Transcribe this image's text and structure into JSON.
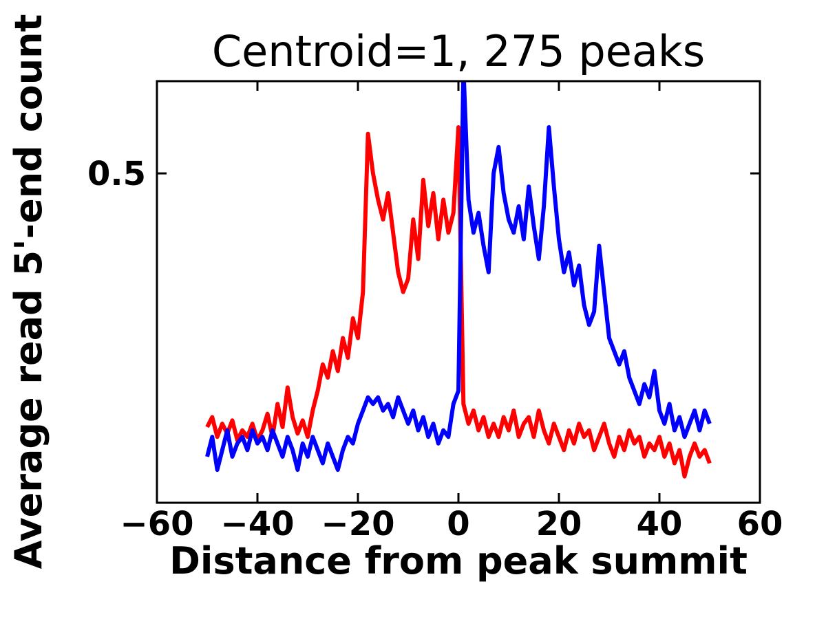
{
  "chart_data": {
    "type": "line",
    "title": "Centroid=1, 275 peaks",
    "xlabel": "Distance from peak summit",
    "ylabel": "Average read 5'-end count",
    "xlim": [
      -60,
      60
    ],
    "ylim": [
      0,
      0.64
    ],
    "grid": false,
    "legend_position": "none",
    "xticks": [
      -60,
      -40,
      -20,
      0,
      20,
      40,
      60
    ],
    "xtick_labels": [
      "−60",
      "−40",
      "−20",
      "0",
      "20",
      "40",
      "60"
    ],
    "yticks": [
      0.5
    ],
    "ytick_labels": [
      "0.5"
    ],
    "axis_color": "#000000",
    "background_color": "#ffffff",
    "x": [
      -50,
      -49,
      -48,
      -47,
      -46,
      -45,
      -44,
      -43,
      -42,
      -41,
      -40,
      -39,
      -38,
      -37,
      -36,
      -35,
      -34,
      -33,
      -32,
      -31,
      -30,
      -29,
      -28,
      -27,
      -26,
      -25,
      -24,
      -23,
      -22,
      -21,
      -20,
      -19,
      -18,
      -17,
      -16,
      -15,
      -14,
      -13,
      -12,
      -11,
      -10,
      -9,
      -8,
      -7,
      -6,
      -5,
      -4,
      -3,
      -2,
      -1,
      0,
      1,
      2,
      3,
      4,
      5,
      6,
      7,
      8,
      9,
      10,
      11,
      12,
      13,
      14,
      15,
      16,
      17,
      18,
      19,
      20,
      21,
      22,
      23,
      24,
      25,
      26,
      27,
      28,
      29,
      30,
      31,
      32,
      33,
      34,
      35,
      36,
      37,
      38,
      39,
      40,
      41,
      42,
      43,
      44,
      45,
      46,
      47,
      48,
      49,
      50
    ],
    "series": [
      {
        "name": "red-series",
        "color": "#ff0000",
        "values": [
          0.115,
          0.13,
          0.1,
          0.12,
          0.105,
          0.125,
          0.095,
          0.11,
          0.1,
          0.12,
          0.095,
          0.11,
          0.135,
          0.1,
          0.15,
          0.115,
          0.175,
          0.13,
          0.105,
          0.125,
          0.1,
          0.14,
          0.17,
          0.21,
          0.19,
          0.23,
          0.2,
          0.25,
          0.22,
          0.28,
          0.25,
          0.32,
          0.56,
          0.5,
          0.46,
          0.43,
          0.47,
          0.41,
          0.35,
          0.32,
          0.34,
          0.43,
          0.37,
          0.49,
          0.42,
          0.47,
          0.4,
          0.46,
          0.41,
          0.44,
          0.57,
          0.15,
          0.12,
          0.14,
          0.11,
          0.13,
          0.1,
          0.12,
          0.1,
          0.13,
          0.11,
          0.14,
          0.1,
          0.12,
          0.13,
          0.1,
          0.14,
          0.11,
          0.09,
          0.12,
          0.1,
          0.08,
          0.11,
          0.09,
          0.12,
          0.1,
          0.11,
          0.08,
          0.1,
          0.12,
          0.09,
          0.07,
          0.1,
          0.08,
          0.11,
          0.09,
          0.1,
          0.07,
          0.09,
          0.08,
          0.1,
          0.07,
          0.09,
          0.06,
          0.08,
          0.04,
          0.07,
          0.09,
          0.07,
          0.08,
          0.06
        ]
      },
      {
        "name": "blue-series",
        "color": "#0000ff",
        "values": [
          0.07,
          0.1,
          0.05,
          0.08,
          0.11,
          0.07,
          0.09,
          0.1,
          0.08,
          0.11,
          0.09,
          0.1,
          0.08,
          0.11,
          0.09,
          0.07,
          0.1,
          0.08,
          0.05,
          0.09,
          0.07,
          0.1,
          0.08,
          0.06,
          0.09,
          0.07,
          0.05,
          0.08,
          0.1,
          0.09,
          0.12,
          0.14,
          0.16,
          0.15,
          0.16,
          0.14,
          0.15,
          0.13,
          0.16,
          0.14,
          0.12,
          0.14,
          0.11,
          0.13,
          0.1,
          0.12,
          0.09,
          0.11,
          0.1,
          0.15,
          0.17,
          0.66,
          0.46,
          0.41,
          0.44,
          0.39,
          0.35,
          0.5,
          0.54,
          0.47,
          0.43,
          0.41,
          0.45,
          0.4,
          0.48,
          0.42,
          0.37,
          0.45,
          0.57,
          0.48,
          0.4,
          0.35,
          0.38,
          0.33,
          0.36,
          0.3,
          0.27,
          0.29,
          0.39,
          0.32,
          0.25,
          0.23,
          0.21,
          0.23,
          0.19,
          0.17,
          0.15,
          0.18,
          0.16,
          0.2,
          0.14,
          0.12,
          0.15,
          0.11,
          0.13,
          0.1,
          0.12,
          0.14,
          0.11,
          0.14,
          0.12
        ]
      }
    ]
  }
}
